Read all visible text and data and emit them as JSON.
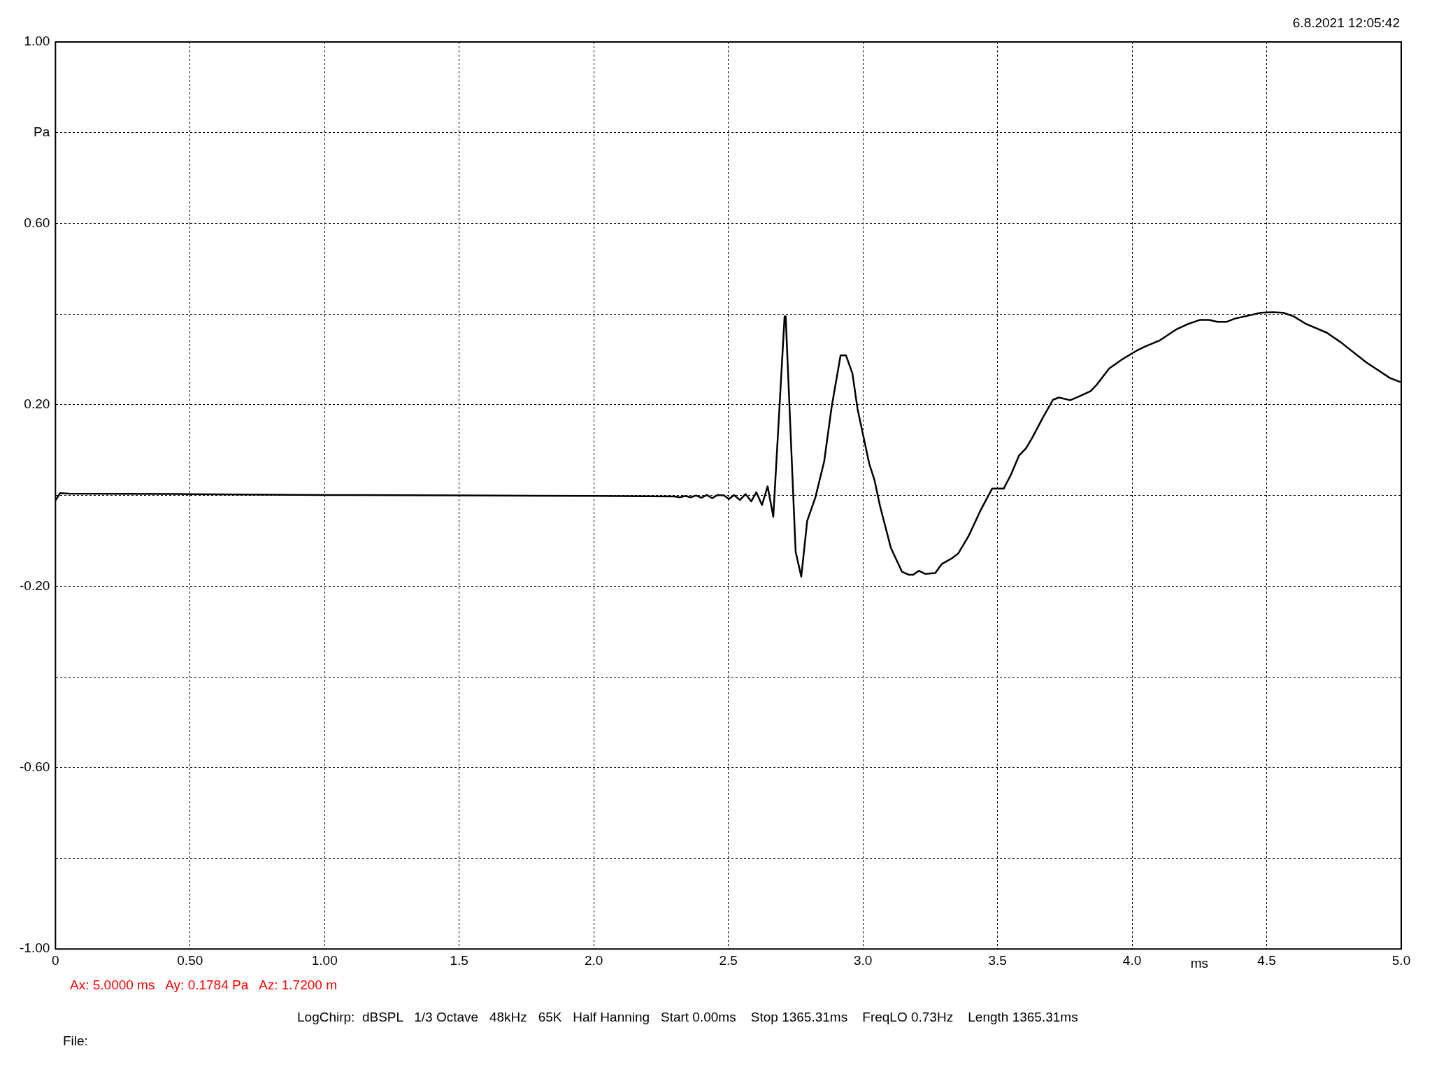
{
  "chart_data": {
    "type": "line",
    "xlabel": "ms",
    "ylabel": "Pa",
    "annotations": [
      "6.8.2021 12:05:42",
      "Ax: 5.0000 ms   Ay: 0.1784 Pa   Az: 1.7200 m",
      "LogChirp:  dBSPL   1/3 Octave   48kHz   65K   Half Hanning   Start 0.00ms    Stop 1365.31ms    FreqLO 0.73Hz    Length 1365.31ms",
      "File:"
    ],
    "xlim": [
      0,
      5
    ],
    "ylim": [
      -1,
      1
    ],
    "xticks": [
      0,
      {
        "value": 0.5,
        "label": "0.50"
      },
      {
        "value": 1,
        "label": "1.00"
      },
      1.5,
      {
        "value": 2,
        "label": "2.0"
      },
      2.5,
      {
        "value": 3,
        "label": "3.0"
      },
      3.5,
      {
        "value": 4,
        "label": "4.0"
      },
      4.5,
      {
        "value": 5,
        "label": "5.0"
      }
    ],
    "yticks": [
      {
        "value": -1,
        "label": "-1.00"
      },
      {
        "value": -0.8,
        "label": null
      },
      {
        "value": -0.6,
        "label": "-0.60"
      },
      {
        "value": -0.4,
        "label": null
      },
      {
        "value": -0.2,
        "label": "-0.20"
      },
      {
        "value": 0,
        "label": null
      },
      {
        "value": 0.2,
        "label": "0.20"
      },
      {
        "value": 0.4,
        "label": null
      },
      {
        "value": 0.6,
        "label": "0.60"
      },
      {
        "value": 0.8,
        "label": null
      },
      {
        "value": 1,
        "label": "1.00"
      }
    ],
    "grid": true,
    "marker": "none",
    "line_style": "solid",
    "series": [
      {
        "color": "#000000",
        "x": [
          0,
          0.017,
          0.05,
          0.5,
          1.0,
          1.5,
          2.0,
          2.3,
          2.32,
          2.34,
          2.36,
          2.38,
          2.4,
          2.42,
          2.44,
          2.46,
          2.484,
          2.502,
          2.521,
          2.543,
          2.564,
          2.585,
          2.604,
          2.625,
          2.646,
          2.667,
          2.709,
          2.713,
          2.75,
          2.771,
          2.793,
          2.823,
          2.856,
          2.884,
          2.917,
          2.937,
          2.961,
          2.98,
          3.023,
          3.043,
          3.063,
          3.104,
          3.145,
          3.171,
          3.187,
          3.208,
          3.232,
          3.269,
          3.293,
          3.332,
          3.354,
          3.393,
          3.436,
          3.48,
          3.523,
          3.55,
          3.58,
          3.606,
          3.628,
          3.667,
          3.706,
          3.728,
          3.77,
          3.802,
          3.846,
          3.867,
          3.915,
          3.963,
          4.016,
          4.051,
          4.103,
          4.164,
          4.208,
          4.251,
          4.286,
          4.317,
          4.352,
          4.382,
          4.435,
          4.478,
          4.522,
          4.561,
          4.6,
          4.644,
          4.723,
          4.775,
          4.871,
          4.958,
          4.997
        ],
        "values": [
          -0.011,
          0.005,
          0.004,
          0.003,
          0.001,
          0,
          -0.001,
          -0.002,
          -0.004,
          -0.001,
          -0.004,
          0,
          -0.005,
          0.001,
          -0.006,
          0.001,
          0,
          -0.008,
          0.001,
          -0.01,
          0.003,
          -0.013,
          0.007,
          -0.021,
          0.02,
          -0.047,
          0.395,
          0.395,
          -0.124,
          -0.179,
          -0.056,
          -0.005,
          0.075,
          0.196,
          0.309,
          0.309,
          0.269,
          0.191,
          0.071,
          0.034,
          -0.022,
          -0.116,
          -0.168,
          -0.175,
          -0.175,
          -0.166,
          -0.173,
          -0.171,
          -0.151,
          -0.138,
          -0.128,
          -0.089,
          -0.034,
          0.015,
          0.015,
          0.046,
          0.088,
          0.104,
          0.126,
          0.17,
          0.211,
          0.216,
          0.21,
          0.218,
          0.23,
          0.243,
          0.28,
          0.3,
          0.319,
          0.329,
          0.342,
          0.366,
          0.378,
          0.387,
          0.387,
          0.383,
          0.383,
          0.39,
          0.397,
          0.403,
          0.404,
          0.403,
          0.395,
          0.379,
          0.359,
          0.338,
          0.293,
          0.259,
          0.25
        ]
      }
    ]
  }
}
